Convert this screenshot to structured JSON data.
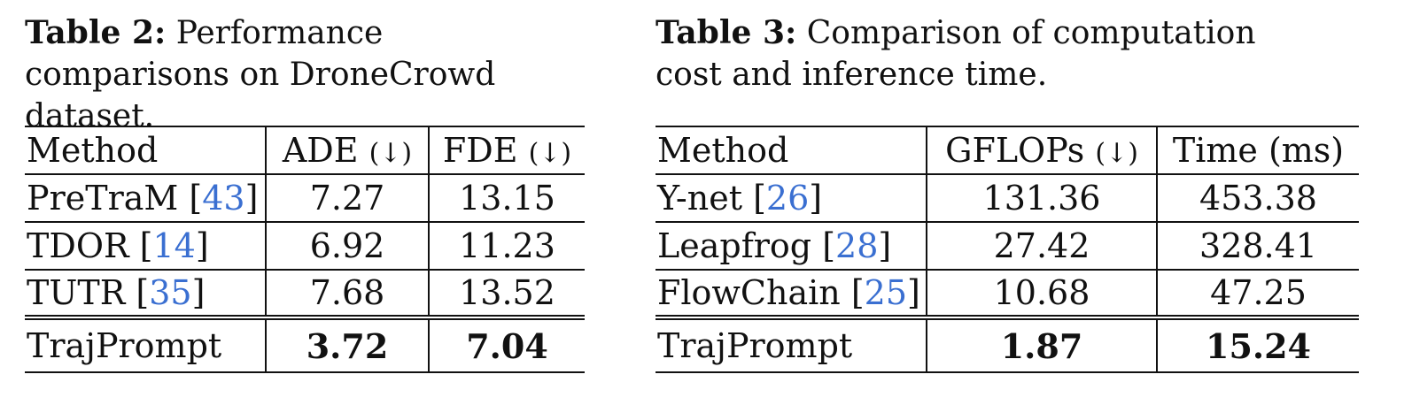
{
  "table2": {
    "caption_label": "Table 2:",
    "caption_text": " Performance comparisons on DroneCrowd dataset.",
    "headers": {
      "method": "Method",
      "ade": "ADE",
      "ade_arrow": "(↓)",
      "fde": "FDE",
      "fde_arrow": "(↓)"
    },
    "rows": [
      {
        "method": "PreTraM",
        "cite": "43",
        "ade": "7.27",
        "fde": "13.15"
      },
      {
        "method": "TDOR",
        "cite": "14",
        "ade": "6.92",
        "fde": "11.23"
      },
      {
        "method": "TUTR",
        "cite": "35",
        "ade": "7.68",
        "fde": "13.52"
      }
    ],
    "ours": {
      "method": "TrajPrompt",
      "ade": "3.72",
      "fde": "7.04"
    }
  },
  "table3": {
    "caption_label": "Table 3:",
    "caption_text": " Comparison of computation cost and inference time.",
    "headers": {
      "method": "Method",
      "gflops": "GFLOPs",
      "gflops_arrow": "(↓)",
      "time": "Time (ms)"
    },
    "rows": [
      {
        "method": "Y-net",
        "cite": "26",
        "gflops": "131.36",
        "time": "453.38"
      },
      {
        "method": "Leapfrog",
        "cite": "28",
        "gflops": "27.42",
        "time": "328.41"
      },
      {
        "method": "FlowChain",
        "cite": "25",
        "gflops": "10.68",
        "time": "47.25"
      }
    ],
    "ours": {
      "method": "TrajPrompt",
      "gflops": "1.87",
      "time": "15.24"
    }
  },
  "colors": {
    "citation": "#3a6fd1",
    "text": "#111111"
  }
}
